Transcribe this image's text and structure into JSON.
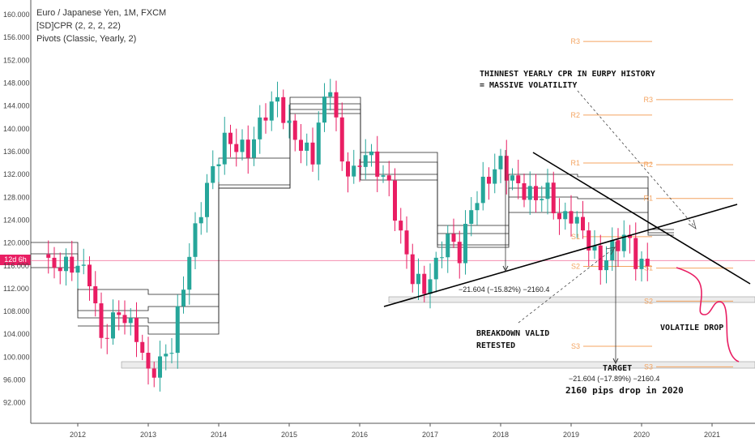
{
  "legend": {
    "title": "Euro / Japanese Yen, 1M, FXCM",
    "indicator1": "[SD]CPR (2, 2, 2, 22)",
    "indicator2": "Pivots (Classic, Yearly, 2)"
  },
  "price_tag": "12d 6h",
  "colors": {
    "up": "#26a69a",
    "down": "#e91e63",
    "pivot": "#f4a460",
    "cpr": "#222222",
    "current": "#f48fb1"
  },
  "annotations": {
    "headline_1": "THINNEST YEARLY CPR IN EURPY HISTORY",
    "headline_2": "= MASSIVE VOLATILITY",
    "breakdown_1": "BREAKDOWN VALID",
    "breakdown_2": "RETESTED",
    "volatile": "VOLATILE DROP",
    "target": "TARGET",
    "measure_1": "−21.604 (−15.82%) −2160.4",
    "measure_2": "−21.604 (−17.89%) −2160.4",
    "pips": "2160 pips drop in 2020"
  },
  "chart_data": {
    "type": "candlestick",
    "ylim": [
      88.5,
      162.3
    ],
    "y_ticks": [
      "92.000",
      "96.000",
      "100.000",
      "104.000",
      "108.000",
      "112.000",
      "116.000",
      "120.000",
      "124.000",
      "128.000",
      "132.000",
      "136.000",
      "140.000",
      "144.000",
      "148.000",
      "152.000",
      "156.000",
      "160.000"
    ],
    "x_ticks": [
      "2012",
      "2013",
      "2014",
      "2015",
      "2016",
      "2017",
      "2018",
      "2019",
      "2020",
      "2021"
    ],
    "current_price": 116.9,
    "pivot_labels": {
      "2018": [
        "R3",
        "R2",
        "R1"
      ],
      "2019": [
        "R1",
        "S1",
        "S2",
        "S3"
      ],
      "2020": [
        "R3",
        "R2",
        "R1",
        "S1",
        "S2",
        "S3",
        "S3"
      ]
    }
  }
}
